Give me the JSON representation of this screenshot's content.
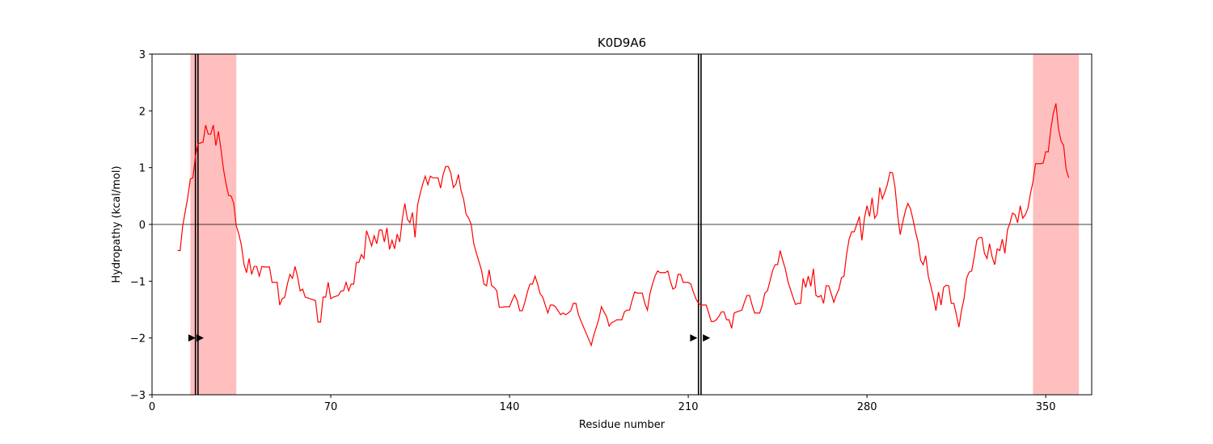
{
  "chart_data": {
    "type": "line",
    "title": "K0D9A6",
    "x_label": "Residue number",
    "y_label": "Hydropathy (kcal/mol)",
    "color": "#ff0000",
    "x": [
      10,
      11,
      12,
      14,
      15,
      16,
      17,
      18,
      20,
      21,
      22,
      23,
      24,
      25,
      26,
      27,
      28,
      29,
      30,
      31,
      32,
      33,
      34,
      35,
      36,
      37,
      38,
      39,
      40,
      41,
      42,
      43,
      44,
      46,
      47,
      49,
      50,
      51,
      52,
      53,
      54,
      55,
      56,
      57,
      58,
      59,
      60,
      62,
      64,
      65,
      66,
      67,
      68,
      69,
      70,
      71,
      73,
      74,
      75,
      76,
      77,
      78,
      79,
      80,
      81,
      82,
      83,
      84,
      85,
      86,
      87,
      88,
      89,
      90,
      91,
      92,
      93,
      94,
      95,
      96,
      97,
      98,
      99,
      100,
      101,
      102,
      103,
      104,
      105,
      106,
      107,
      108,
      109,
      110,
      112,
      113,
      114,
      115,
      116,
      117,
      118,
      119,
      120,
      121,
      122,
      123,
      124,
      125,
      126,
      127,
      128,
      129,
      130,
      131,
      132,
      133,
      134,
      135,
      136,
      137,
      138,
      140,
      141,
      142,
      143,
      144,
      145,
      146,
      147,
      148,
      149,
      150,
      151,
      152,
      153,
      154,
      155,
      156,
      157,
      158,
      159,
      160,
      161,
      162,
      163,
      164,
      165,
      166,
      167,
      169,
      171,
      172,
      173,
      174,
      175,
      176,
      177,
      178,
      179,
      180,
      181,
      182,
      184,
      185,
      186,
      187,
      188,
      189,
      190,
      192,
      193,
      194,
      195,
      196,
      197,
      198,
      199,
      201,
      202,
      203,
      204,
      205,
      206,
      207,
      208,
      210,
      211,
      212,
      213,
      214,
      215,
      217,
      218,
      219,
      220,
      221,
      222,
      223,
      224,
      225,
      226,
      227,
      228,
      229,
      231,
      232,
      233,
      234,
      235,
      236,
      238,
      239,
      240,
      241,
      242,
      243,
      244,
      245,
      246,
      247,
      248,
      249,
      250,
      251,
      252,
      253,
      254,
      255,
      256,
      257,
      258,
      259,
      260,
      261,
      262,
      263,
      264,
      265,
      266,
      267,
      268,
      269,
      270,
      271,
      272,
      273,
      274,
      275,
      276,
      277,
      278,
      279,
      280,
      281,
      282,
      283,
      284,
      285,
      286,
      287,
      288,
      289,
      290,
      291,
      292,
      293,
      294,
      295,
      296,
      297,
      298,
      299,
      300,
      301,
      302,
      303,
      304,
      305,
      306,
      307,
      308,
      309,
      310,
      311,
      312,
      313,
      314,
      315,
      316,
      317,
      318,
      319,
      320,
      321,
      322,
      323,
      324,
      325,
      326,
      327,
      328,
      329,
      330,
      331,
      332,
      333,
      334,
      335,
      336,
      337,
      338,
      339,
      340,
      341,
      342,
      343,
      344,
      345,
      346,
      348,
      349,
      350,
      351,
      352,
      353,
      354,
      355,
      356,
      357,
      358,
      359
    ],
    "values": [
      -0.46,
      -0.46,
      -0.03,
      0.48,
      0.8,
      0.82,
      1.2,
      1.42,
      1.45,
      1.75,
      1.59,
      1.59,
      1.75,
      1.39,
      1.64,
      1.32,
      0.97,
      0.71,
      0.51,
      0.5,
      0.37,
      -0.03,
      -0.17,
      -0.37,
      -0.7,
      -0.85,
      -0.6,
      -0.88,
      -0.74,
      -0.74,
      -0.91,
      -0.74,
      -0.75,
      -0.75,
      -1.02,
      -1.02,
      -1.42,
      -1.31,
      -1.28,
      -1.05,
      -0.88,
      -0.95,
      -0.74,
      -0.92,
      -1.17,
      -1.14,
      -1.28,
      -1.31,
      -1.34,
      -1.72,
      -1.72,
      -1.28,
      -1.28,
      -1.02,
      -1.31,
      -1.28,
      -1.25,
      -1.17,
      -1.17,
      -1.02,
      -1.17,
      -1.05,
      -1.05,
      -0.67,
      -0.67,
      -0.53,
      -0.6,
      -0.11,
      -0.24,
      -0.38,
      -0.2,
      -0.34,
      -0.1,
      -0.1,
      -0.31,
      -0.06,
      -0.44,
      -0.28,
      -0.43,
      -0.17,
      -0.31,
      0.09,
      0.37,
      0.09,
      0.03,
      0.21,
      -0.23,
      0.34,
      0.54,
      0.71,
      0.85,
      0.7,
      0.85,
      0.82,
      0.82,
      0.64,
      0.88,
      1.02,
      1.02,
      0.91,
      0.65,
      0.71,
      0.88,
      0.6,
      0.45,
      0.18,
      0.11,
      0,
      -0.34,
      -0.5,
      -0.65,
      -0.8,
      -1.05,
      -1.08,
      -0.8,
      -1.08,
      -1.11,
      -1.17,
      -1.46,
      -1.46,
      -1.45,
      -1.45,
      -1.34,
      -1.24,
      -1.34,
      -1.52,
      -1.52,
      -1.37,
      -1.19,
      -1.05,
      -1.05,
      -0.91,
      -1.05,
      -1.22,
      -1.28,
      -1.42,
      -1.56,
      -1.42,
      -1.42,
      -1.45,
      -1.52,
      -1.59,
      -1.56,
      -1.59,
      -1.56,
      -1.52,
      -1.39,
      -1.39,
      -1.59,
      -1.81,
      -2.02,
      -2.13,
      -1.95,
      -1.81,
      -1.66,
      -1.45,
      -1.54,
      -1.62,
      -1.79,
      -1.73,
      -1.71,
      -1.68,
      -1.68,
      -1.54,
      -1.51,
      -1.51,
      -1.34,
      -1.19,
      -1.21,
      -1.21,
      -1.39,
      -1.51,
      -1.22,
      -1.05,
      -0.91,
      -0.82,
      -0.85,
      -0.85,
      -0.82,
      -1.0,
      -1.14,
      -1.11,
      -0.88,
      -0.88,
      -1.02,
      -1.02,
      -1.05,
      -1.19,
      -1.31,
      -1.39,
      -1.42,
      -1.42,
      -1.56,
      -1.71,
      -1.71,
      -1.68,
      -1.62,
      -1.54,
      -1.54,
      -1.68,
      -1.68,
      -1.83,
      -1.56,
      -1.54,
      -1.51,
      -1.37,
      -1.25,
      -1.25,
      -1.42,
      -1.56,
      -1.56,
      -1.42,
      -1.21,
      -1.17,
      -1.0,
      -0.82,
      -0.71,
      -0.71,
      -0.46,
      -0.63,
      -0.78,
      -1.0,
      -1.14,
      -1.28,
      -1.41,
      -1.39,
      -1.39,
      -0.95,
      -1.11,
      -0.91,
      -1.09,
      -0.78,
      -1.25,
      -1.28,
      -1.25,
      -1.39,
      -1.08,
      -1.08,
      -1.22,
      -1.37,
      -1.24,
      -1.14,
      -0.94,
      -0.91,
      -0.53,
      -0.26,
      -0.13,
      -0.13,
      0,
      0.14,
      -0.28,
      0.11,
      0.33,
      0.14,
      0.47,
      0.11,
      0.18,
      0.65,
      0.45,
      0.57,
      0.71,
      0.92,
      0.91,
      0.65,
      0.17,
      -0.18,
      0.04,
      0.23,
      0.37,
      0.28,
      0.09,
      -0.13,
      -0.31,
      -0.63,
      -0.71,
      -0.55,
      -0.91,
      -1.09,
      -1.28,
      -1.52,
      -1.19,
      -1.42,
      -1.11,
      -1.07,
      -1.08,
      -1.39,
      -1.39,
      -1.59,
      -1.81,
      -1.52,
      -1.31,
      -0.95,
      -0.84,
      -0.82,
      -0.57,
      -0.28,
      -0.23,
      -0.23,
      -0.51,
      -0.6,
      -0.34,
      -0.57,
      -0.71,
      -0.43,
      -0.46,
      -0.26,
      -0.51,
      -0.1,
      0.03,
      0.2,
      0.17,
      0.03,
      0.33,
      0.11,
      0.17,
      0.28,
      0.54,
      0.75,
      1.07,
      1.07,
      1.08,
      1.28,
      1.28,
      1.68,
      1.96,
      2.13,
      1.68,
      1.47,
      1.39,
      0.97,
      0.82
    ],
    "xlim": [
      0,
      368
    ],
    "xticks": [
      0,
      70,
      140,
      210,
      280,
      350
    ],
    "ylim": [
      -3,
      3
    ],
    "yticks": [
      {
        "value": -3,
        "label": "−3"
      },
      {
        "value": -2,
        "label": "−2"
      },
      {
        "value": -1,
        "label": "−1"
      },
      0,
      1,
      2,
      3
    ],
    "hline": 0,
    "shaded_regions": [
      [
        15,
        33
      ],
      [
        345,
        363
      ]
    ],
    "shade_color": "#ffbfbf",
    "vlines": [
      17,
      18,
      214,
      215
    ],
    "markers": {
      "x": [
        15.5,
        18.7,
        212,
        217
      ],
      "y": [
        -2,
        -2,
        -2,
        -2
      ]
    }
  }
}
